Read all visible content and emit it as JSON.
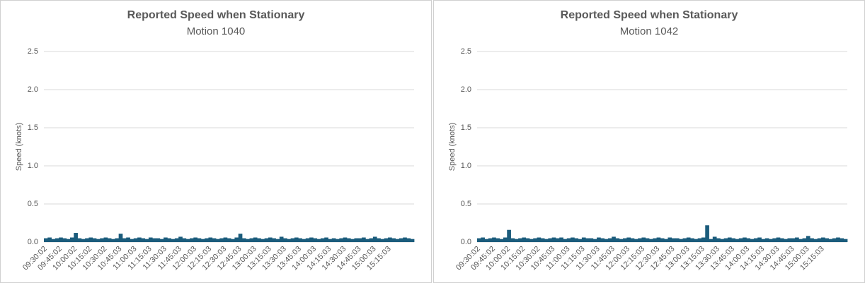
{
  "chart_data": [
    {
      "type": "bar",
      "title": "Reported Speed when Stationary",
      "subtitle": "Motion 1040",
      "y_label": "Speed (knots)",
      "color": "#1b5c7c",
      "grid": true,
      "ylim": [
        0,
        2.5
      ],
      "yticks": [
        {
          "value": 0,
          "label": "0.0"
        },
        0.5,
        {
          "value": 1,
          "label": "1.0"
        },
        1.5,
        {
          "value": 2,
          "label": "2.0"
        },
        2.5
      ],
      "categories": [
        "09:30:02",
        null,
        null,
        null,
        "09:45:02",
        null,
        null,
        null,
        "10:00:02",
        null,
        null,
        null,
        "10:15:02",
        null,
        null,
        null,
        "10:30:02",
        null,
        null,
        null,
        "10:45:03",
        null,
        null,
        null,
        "11:00:03",
        null,
        null,
        null,
        "11:15:03",
        null,
        null,
        null,
        "11:30:03",
        null,
        null,
        null,
        "11:45:03",
        null,
        null,
        null,
        "12:00:03",
        null,
        null,
        null,
        "12:15:03",
        null,
        null,
        null,
        "12:30:03",
        null,
        null,
        null,
        "12:45:03",
        null,
        null,
        null,
        "13:00:03",
        null,
        null,
        null,
        "13:15:03",
        null,
        null,
        null,
        "13:30:03",
        null,
        null,
        null,
        "13:45:03",
        null,
        null,
        null,
        "14:00:03",
        null,
        null,
        null,
        "14:15:03",
        null,
        null,
        null,
        "14:30:03",
        null,
        null,
        null,
        "14:45:03",
        null,
        null,
        null,
        "15:00:03",
        null,
        null,
        null,
        "15:15:03",
        null,
        null,
        null,
        null,
        null,
        null
      ],
      "values": [
        0.05,
        0.06,
        0.04,
        0.05,
        0.06,
        0.05,
        0.04,
        0.06,
        0.12,
        0.05,
        0.04,
        0.05,
        0.06,
        0.05,
        0.04,
        0.05,
        0.06,
        0.05,
        0.04,
        0.05,
        0.11,
        0.05,
        0.06,
        0.04,
        0.05,
        0.06,
        0.05,
        0.04,
        0.06,
        0.05,
        0.05,
        0.04,
        0.06,
        0.05,
        0.04,
        0.05,
        0.07,
        0.05,
        0.04,
        0.05,
        0.06,
        0.05,
        0.04,
        0.05,
        0.06,
        0.05,
        0.04,
        0.05,
        0.06,
        0.05,
        0.04,
        0.06,
        0.11,
        0.05,
        0.04,
        0.05,
        0.06,
        0.05,
        0.04,
        0.05,
        0.06,
        0.05,
        0.04,
        0.07,
        0.05,
        0.04,
        0.05,
        0.06,
        0.05,
        0.04,
        0.05,
        0.06,
        0.05,
        0.04,
        0.05,
        0.06,
        0.04,
        0.05,
        0.04,
        0.05,
        0.06,
        0.05,
        0.04,
        0.05,
        0.05,
        0.06,
        0.04,
        0.05,
        0.07,
        0.05,
        0.04,
        0.05,
        0.06,
        0.05,
        0.04,
        0.05,
        0.06,
        0.05,
        0.04
      ]
    },
    {
      "type": "bar",
      "title": "Reported Speed when Stationary",
      "subtitle": "Motion 1042",
      "y_label": "Speed (knots)",
      "color": "#1b5c7c",
      "grid": true,
      "ylim": [
        0,
        2.5
      ],
      "yticks": [
        {
          "value": 0,
          "label": "0.0"
        },
        0.5,
        {
          "value": 1,
          "label": "1.0"
        },
        1.5,
        {
          "value": 2,
          "label": "2.0"
        },
        2.5
      ],
      "categories": [
        "09:30:02",
        null,
        null,
        null,
        "09:45:02",
        null,
        null,
        null,
        "10:00:02",
        null,
        null,
        null,
        "10:15:02",
        null,
        null,
        null,
        "10:30:02",
        null,
        null,
        null,
        "10:45:03",
        null,
        null,
        null,
        "11:00:03",
        null,
        null,
        null,
        "11:15:03",
        null,
        null,
        null,
        "11:30:03",
        null,
        null,
        null,
        "11:45:03",
        null,
        null,
        null,
        "12:00:03",
        null,
        null,
        null,
        "12:15:03",
        null,
        null,
        null,
        "12:30:03",
        null,
        null,
        null,
        "12:45:03",
        null,
        null,
        null,
        "13:00:03",
        null,
        null,
        null,
        "13:15:03",
        null,
        null,
        null,
        "13:30:03",
        null,
        null,
        null,
        "13:45:03",
        null,
        null,
        null,
        "14:00:03",
        null,
        null,
        null,
        "14:15:03",
        null,
        null,
        null,
        "14:30:03",
        null,
        null,
        null,
        "14:45:03",
        null,
        null,
        null,
        "15:00:03",
        null,
        null,
        null,
        "15:15:03",
        null,
        null,
        null,
        null,
        null,
        null
      ],
      "values": [
        0.05,
        0.06,
        0.04,
        0.05,
        0.06,
        0.05,
        0.04,
        0.06,
        0.16,
        0.05,
        0.04,
        0.05,
        0.06,
        0.05,
        0.04,
        0.05,
        0.06,
        0.05,
        0.04,
        0.05,
        0.06,
        0.05,
        0.06,
        0.04,
        0.05,
        0.06,
        0.05,
        0.04,
        0.06,
        0.05,
        0.05,
        0.04,
        0.06,
        0.05,
        0.04,
        0.05,
        0.07,
        0.05,
        0.04,
        0.05,
        0.06,
        0.05,
        0.04,
        0.05,
        0.06,
        0.05,
        0.04,
        0.05,
        0.06,
        0.05,
        0.04,
        0.06,
        0.05,
        0.05,
        0.04,
        0.05,
        0.06,
        0.05,
        0.04,
        0.05,
        0.06,
        0.22,
        0.04,
        0.07,
        0.05,
        0.04,
        0.05,
        0.06,
        0.05,
        0.04,
        0.05,
        0.06,
        0.05,
        0.04,
        0.05,
        0.06,
        0.04,
        0.05,
        0.04,
        0.05,
        0.06,
        0.05,
        0.04,
        0.05,
        0.05,
        0.06,
        0.04,
        0.05,
        0.08,
        0.05,
        0.04,
        0.05,
        0.06,
        0.05,
        0.04,
        0.05,
        0.06,
        0.05,
        0.04
      ]
    }
  ]
}
